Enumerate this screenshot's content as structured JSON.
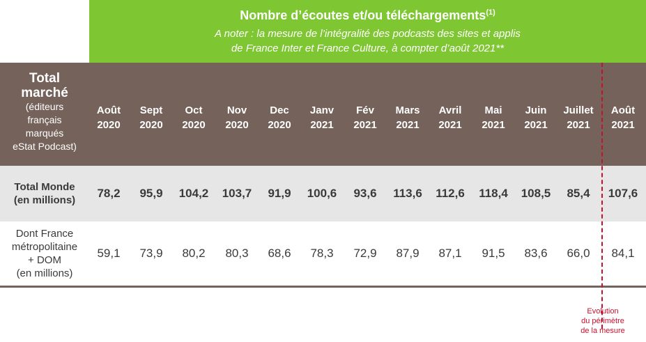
{
  "banner": {
    "title": "Nombre d’écoutes et/ou téléchargements",
    "title_note": "(1)",
    "note_line1": "A noter : la mesure de l’intégralité des podcasts des sites et applis",
    "note_line2": "de France Inter et France Culture, à compter d’août 2021**"
  },
  "table": {
    "corner_line1": "Total",
    "corner_line2": "marché",
    "corner_line3": "(éditeurs",
    "corner_line4": "français",
    "corner_line5": "marqués",
    "corner_line6": "eStat Podcast)",
    "columns": [
      {
        "l1": "Août",
        "l2": "2020"
      },
      {
        "l1": "Sept",
        "l2": "2020"
      },
      {
        "l1": "Oct",
        "l2": "2020"
      },
      {
        "l1": "Nov",
        "l2": "2020"
      },
      {
        "l1": "Dec",
        "l2": "2020"
      },
      {
        "l1": "Janv",
        "l2": "2021"
      },
      {
        "l1": "Fév",
        "l2": "2021"
      },
      {
        "l1": "Mars",
        "l2": "2021"
      },
      {
        "l1": "Avril",
        "l2": "2021"
      },
      {
        "l1": "Mai",
        "l2": "2021"
      },
      {
        "l1": "Juin",
        "l2": "2021"
      },
      {
        "l1": "Juillet",
        "l2": "2021"
      },
      {
        "l1": "Août",
        "l2": "2021"
      }
    ],
    "rows": [
      {
        "label_line1": "Total Monde",
        "label_line2": "(en millions)",
        "values": [
          "78,2",
          "95,9",
          "104,2",
          "103,7",
          "91,9",
          "100,6",
          "93,6",
          "113,6",
          "112,6",
          "118,4",
          "108,5",
          "85,4",
          "107,6"
        ]
      },
      {
        "label_line1": "Dont France",
        "label_line2": "métropolitaine",
        "label_line3": "+ DOM",
        "label_line4": "(en millions)",
        "values": [
          "59,1",
          "73,9",
          "80,2",
          "80,3",
          "68,6",
          "78,3",
          "72,9",
          "87,9",
          "87,1",
          "91,5",
          "83,6",
          "66,0",
          "84,1"
        ]
      }
    ]
  },
  "annotation": {
    "line1": "Evolution",
    "line2": "du périmètre",
    "line3": "de la mesure"
  },
  "colors": {
    "banner_green": "#7fc732",
    "header_brown": "#75625b",
    "row_grey": "#e6e6e6",
    "marker_red": "#c8102e"
  }
}
